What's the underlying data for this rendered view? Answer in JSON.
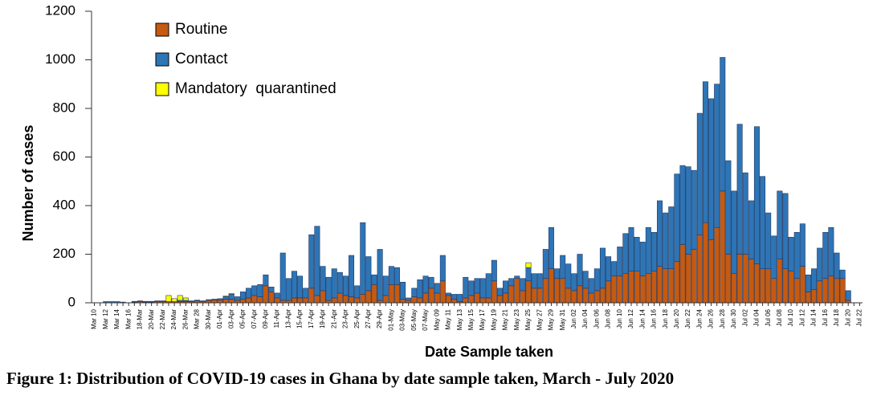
{
  "chart_data": {
    "type": "stacked_bar",
    "y_label": "Number of cases",
    "x_label": "Date Sample taken",
    "caption": "Figure 1: Distribution of COVID-19 cases in Ghana by date sample taken, March - July 2020",
    "legend": "top-left",
    "ylim": [
      0,
      1200
    ],
    "yticks": [
      0,
      200,
      400,
      600,
      800,
      1000,
      1200
    ],
    "categories": [
      "Mar 10",
      null,
      "Mar 12",
      null,
      "Mar 14",
      null,
      "Mar 16",
      null,
      "18-Mar",
      null,
      "20-Mar",
      null,
      "22-Mar",
      null,
      "24-Mar",
      null,
      "26-Mar",
      null,
      "Mar 28",
      null,
      "30-Mar",
      null,
      "01-Apr",
      null,
      "03-Apr",
      null,
      "05-Apr",
      null,
      "07-Apr",
      null,
      "09-Apr",
      null,
      "11-Apr",
      null,
      "13-Apr",
      null,
      "15-Apr",
      null,
      "17-Apr",
      null,
      "19-Apr",
      null,
      "21-Apr",
      null,
      "23-Apr",
      null,
      "25-Apr",
      null,
      "27-Apr",
      null,
      "29-Apr",
      null,
      "01-May",
      null,
      "03-May",
      null,
      "05-May",
      null,
      "07-May",
      null,
      "May 09",
      null,
      "May 11",
      null,
      "May 13",
      null,
      "May 15",
      null,
      "May 17",
      null,
      "May 19",
      null,
      "May 21",
      null,
      "May 23",
      null,
      "May 25",
      null,
      "May 27",
      null,
      "May 29",
      null,
      "May 31",
      null,
      "Jun 02",
      null,
      "Jun 04",
      null,
      "Jun 06",
      null,
      "Jun 08",
      null,
      "Jun 10",
      null,
      "Jun 12",
      null,
      "Jun 14",
      null,
      "Jun 16",
      null,
      "Jun 18",
      null,
      "Jun 20",
      null,
      "Jun 22",
      null,
      "Jun 24",
      null,
      "Jun 26",
      null,
      "Jun 28",
      null,
      "Jun 30",
      null,
      "Jul 02",
      null,
      "Jul 04",
      null,
      "Jul 06",
      null,
      "Jul 08",
      null,
      "Jul 10",
      null,
      "Jul 12",
      null,
      "Jul 14",
      null,
      "Jul 16",
      null,
      "Jul 18",
      null,
      "Jul 20",
      null,
      "Jul 22"
    ],
    "series": [
      {
        "name": "Routine",
        "color": "#c55a11",
        "values": [
          0,
          0,
          0,
          0,
          0,
          0,
          0,
          3,
          5,
          3,
          3,
          5,
          5,
          5,
          5,
          5,
          5,
          5,
          8,
          5,
          10,
          12,
          12,
          15,
          15,
          10,
          15,
          20,
          30,
          25,
          70,
          45,
          20,
          10,
          10,
          20,
          20,
          20,
          60,
          30,
          50,
          10,
          20,
          40,
          30,
          25,
          20,
          35,
          50,
          75,
          10,
          30,
          75,
          75,
          15,
          10,
          25,
          20,
          40,
          60,
          40,
          90,
          30,
          15,
          5,
          20,
          30,
          40,
          20,
          20,
          90,
          30,
          40,
          70,
          100,
          50,
          90,
          60,
          60,
          100,
          140,
          100,
          100,
          60,
          50,
          70,
          60,
          40,
          50,
          60,
          90,
          110,
          110,
          120,
          130,
          130,
          110,
          120,
          130,
          150,
          140,
          140,
          170,
          240,
          200,
          220,
          280,
          330,
          260,
          310,
          460,
          200,
          120,
          200,
          200,
          180,
          160,
          140,
          140,
          100,
          180,
          140,
          130,
          100,
          150,
          45,
          55,
          90,
          100,
          110,
          100,
          100,
          10,
          0,
          0
        ]
      },
      {
        "name": "Contact",
        "color": "#2e75b6",
        "values": [
          0,
          0,
          5,
          5,
          5,
          3,
          0,
          3,
          3,
          3,
          3,
          3,
          3,
          0,
          0,
          5,
          5,
          3,
          3,
          3,
          3,
          3,
          5,
          10,
          20,
          15,
          30,
          40,
          40,
          50,
          45,
          20,
          20,
          195,
          90,
          110,
          90,
          40,
          220,
          285,
          100,
          95,
          120,
          85,
          80,
          170,
          50,
          295,
          140,
          40,
          210,
          80,
          75,
          70,
          70,
          10,
          35,
          75,
          70,
          45,
          40,
          105,
          10,
          20,
          30,
          85,
          60,
          60,
          80,
          100,
          85,
          30,
          50,
          30,
          10,
          50,
          55,
          60,
          60,
          120,
          170,
          40,
          95,
          100,
          70,
          130,
          70,
          60,
          90,
          165,
          100,
          60,
          120,
          165,
          180,
          140,
          140,
          190,
          160,
          270,
          230,
          255,
          360,
          325,
          360,
          325,
          500,
          580,
          580,
          590,
          550,
          385,
          340,
          535,
          335,
          240,
          565,
          380,
          230,
          175,
          280,
          310,
          140,
          190,
          175,
          70,
          85,
          135,
          190,
          200,
          105,
          35,
          40,
          0,
          0
        ]
      },
      {
        "name": "Mandatory  quarantined",
        "color": "#ffff00",
        "values": [
          0,
          0,
          0,
          0,
          0,
          0,
          0,
          0,
          0,
          0,
          0,
          0,
          0,
          25,
          12,
          20,
          10,
          0,
          0,
          0,
          0,
          0,
          0,
          3,
          3,
          0,
          0,
          0,
          0,
          0,
          0,
          0,
          0,
          0,
          0,
          0,
          0,
          0,
          0,
          0,
          0,
          0,
          0,
          0,
          0,
          0,
          0,
          0,
          0,
          0,
          0,
          0,
          0,
          0,
          0,
          0,
          0,
          0,
          0,
          0,
          0,
          0,
          0,
          0,
          0,
          0,
          0,
          0,
          0,
          0,
          0,
          0,
          0,
          0,
          0,
          0,
          20,
          0,
          0,
          0,
          0,
          0,
          0,
          0,
          0,
          0,
          0,
          0,
          0,
          0,
          0,
          0,
          0,
          0,
          0,
          0,
          0,
          0,
          0,
          0,
          0,
          0,
          0,
          0,
          0,
          0,
          0,
          0,
          0,
          0,
          0,
          0,
          0,
          0,
          0,
          0,
          0,
          0,
          0,
          0,
          0,
          0,
          0,
          0,
          0,
          0,
          0,
          0,
          0,
          0,
          0,
          0,
          0,
          0,
          0
        ]
      }
    ]
  }
}
